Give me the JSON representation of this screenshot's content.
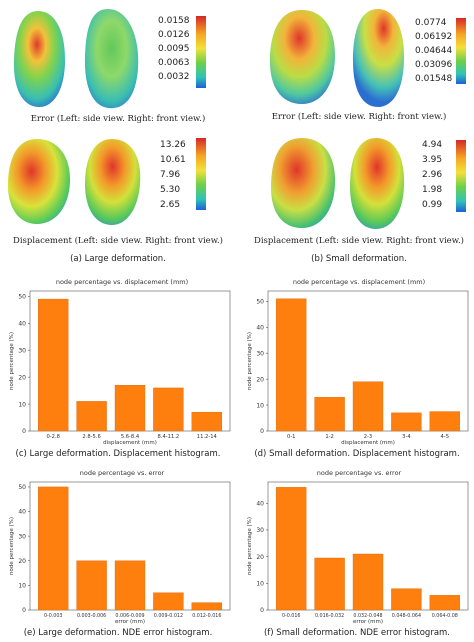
{
  "top": {
    "large": {
      "error_colorbar": [
        "0.0158",
        "0.0126",
        "0.0095",
        "0.0063",
        "0.0032"
      ],
      "error_caption": "Error (Left: side view. Right: front view.)",
      "disp_colorbar": [
        "13.26",
        "10.61",
        "7.96",
        "5.30",
        "2.65"
      ],
      "disp_caption": "Displacement (Left: side view. Right: front view.)",
      "subcaption": "(a) Large deformation."
    },
    "small": {
      "error_colorbar": [
        "0.0774",
        "0.06192",
        "0.04644",
        "0.03096",
        "0.01548"
      ],
      "error_caption": "Error (Left: side view. Right: front view.)",
      "disp_colorbar": [
        "4.94",
        "3.95",
        "2.96",
        "1.98",
        "0.99"
      ],
      "disp_caption": "Displacement (Left: side view. Right: front view.)",
      "subcaption": "(b) Small deformation."
    }
  },
  "colors": {
    "bar": "#ff7f0e",
    "bar_edge": "#d8680a"
  },
  "chart_data": [
    {
      "type": "bar",
      "title": "node percentage vs. displacement (mm)",
      "xlabel": "displacement (mm)",
      "ylabel": "node percentage (%)",
      "categories": [
        "0-2.8",
        "2.8-5.6",
        "5.6-8.4",
        "8.4-11.2",
        "11.2-14"
      ],
      "values": [
        49,
        11,
        17,
        16,
        7
      ],
      "ylim": [
        0,
        52
      ],
      "yticks": [
        0,
        10,
        20,
        30,
        40,
        50
      ],
      "caption": "(c) Large deformation. Displacement histogram."
    },
    {
      "type": "bar",
      "title": "node percentage vs. displacement (mm)",
      "xlabel": "displacement (mm)",
      "ylabel": "node percentage (%)",
      "categories": [
        "0-1",
        "1-2",
        "2-3",
        "3-4",
        "4-5"
      ],
      "values": [
        51,
        13,
        19,
        7,
        7.5
      ],
      "ylim": [
        0,
        54
      ],
      "yticks": [
        0,
        10,
        20,
        30,
        40,
        50
      ],
      "caption": "(d) Small deformation. Displacement histogram."
    },
    {
      "type": "bar",
      "title": "node percentage vs. error",
      "xlabel": "error (mm)",
      "ylabel": "node percentage (%)",
      "categories": [
        "0-0.003",
        "0.003-0.006",
        "0.006-0.009",
        "0.009-0.012",
        "0.012-0.016"
      ],
      "values": [
        50,
        20,
        20,
        7,
        3
      ],
      "ylim": [
        0,
        52
      ],
      "yticks": [
        0,
        10,
        20,
        30,
        40,
        50
      ],
      "caption": "(e) Large deformation. NDE error histogram."
    },
    {
      "type": "bar",
      "title": "node percentage vs. error",
      "xlabel": "error (mm)",
      "ylabel": "node percentage (%)",
      "categories": [
        "0-0.016",
        "0.016-0.032",
        "0.032-0.048",
        "0.048-0.064",
        "0.064-0.08"
      ],
      "values": [
        46,
        19.5,
        21,
        8,
        5.5
      ],
      "ylim": [
        0,
        48
      ],
      "yticks": [
        0,
        10,
        20,
        30,
        40
      ],
      "caption": "(f) Small deformation. NDE error histogram."
    }
  ]
}
